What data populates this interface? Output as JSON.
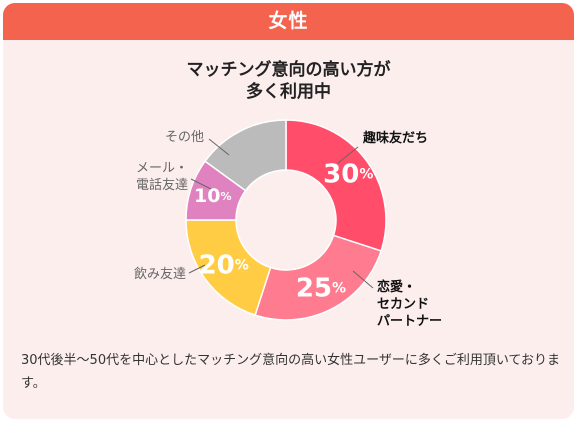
{
  "header": {
    "title": "女性"
  },
  "chart_data": {
    "type": "pie",
    "title_lines": [
      "マッチング意向の高い方が",
      "多く利用中"
    ],
    "slices": [
      {
        "label": "趣味友だち",
        "value": 30,
        "display": "30",
        "unit": "%",
        "color": "#ff4d6a",
        "label_color": "#111111",
        "label_bold": true
      },
      {
        "label": "恋愛・\nセカンド\nパートナー",
        "value": 25,
        "display": "25",
        "unit": "%",
        "color": "#ff7c90",
        "label_color": "#111111",
        "label_bold": true
      },
      {
        "label": "飲み友達",
        "value": 20,
        "display": "20",
        "unit": "%",
        "color": "#ffcc44",
        "label_color": "#666666",
        "label_bold": false
      },
      {
        "label": "メール・\n電話友達",
        "value": 10,
        "display": "10",
        "unit": "%",
        "color": "#e182c0",
        "label_color": "#666666",
        "label_bold": false
      },
      {
        "label": "その他",
        "value": 15,
        "display": "",
        "unit": "",
        "color": "#bbbbbb",
        "label_color": "#666666",
        "label_bold": false
      }
    ]
  },
  "description": "30代後半〜50代を中心としたマッチング意向の高い女性ユーザーに多くご利用頂いております。"
}
